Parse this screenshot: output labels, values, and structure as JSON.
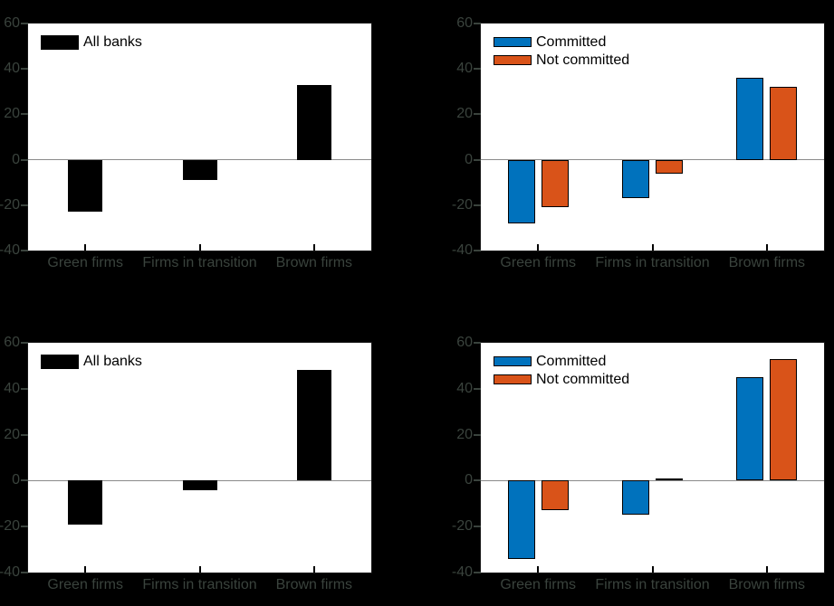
{
  "figure": {
    "background": "#000000",
    "rows": 2,
    "cols": 2
  },
  "colors": {
    "panel_background": "#ffffff",
    "axis_spine": "#161616",
    "zero_line": "#8a8a8a",
    "tick_label": "#3a433d",
    "legend_text": "#000000",
    "bar_edge": "#000000",
    "bar_black": "#000000",
    "bar_blue": "#0072bd",
    "bar_orange": "#d95319"
  },
  "chart_data": [
    {
      "id": "top-left",
      "type": "bar",
      "title": "",
      "xlabel": "",
      "ylabel": "",
      "ylim": [
        -40,
        60
      ],
      "yticks": [
        60,
        40,
        20,
        0,
        -20,
        -40
      ],
      "grid": false,
      "zero_line": true,
      "legend_position": "top-left",
      "categories": [
        "Green firms",
        "Firms in transition",
        "Brown firms"
      ],
      "series": [
        {
          "name": "All banks",
          "color": "#000000",
          "values": [
            -23,
            -9,
            33
          ]
        }
      ]
    },
    {
      "id": "top-right",
      "type": "bar",
      "title": "",
      "xlabel": "",
      "ylabel": "",
      "ylim": [
        -40,
        60
      ],
      "yticks": [
        60,
        40,
        20,
        0,
        -20,
        -40
      ],
      "grid": false,
      "zero_line": true,
      "legend_position": "top-left",
      "categories": [
        "Green firms",
        "Firms in transition",
        "Brown firms"
      ],
      "series": [
        {
          "name": "Committed",
          "color": "#0072bd",
          "values": [
            -28,
            -17,
            36
          ]
        },
        {
          "name": "Not committed",
          "color": "#d95319",
          "values": [
            -21,
            -6,
            32
          ]
        }
      ]
    },
    {
      "id": "bottom-left",
      "type": "bar",
      "title": "",
      "xlabel": "",
      "ylabel": "",
      "ylim": [
        -40,
        60
      ],
      "yticks": [
        60,
        40,
        20,
        0,
        -20,
        -40
      ],
      "grid": false,
      "zero_line": true,
      "legend_position": "top-left",
      "categories": [
        "Green firms",
        "Firms in transition",
        "Brown firms"
      ],
      "series": [
        {
          "name": "All banks",
          "color": "#000000",
          "values": [
            -19,
            -4,
            48
          ]
        }
      ]
    },
    {
      "id": "bottom-right",
      "type": "bar",
      "title": "",
      "xlabel": "",
      "ylabel": "",
      "ylim": [
        -40,
        60
      ],
      "yticks": [
        60,
        40,
        20,
        0,
        -20,
        -40
      ],
      "grid": false,
      "zero_line": true,
      "legend_position": "top-left",
      "categories": [
        "Green firms",
        "Firms in transition",
        "Brown firms"
      ],
      "series": [
        {
          "name": "Committed",
          "color": "#0072bd",
          "values": [
            -34,
            -15,
            45
          ]
        },
        {
          "name": "Not committed",
          "color": "#d95319",
          "values": [
            -13,
            1,
            53
          ]
        }
      ]
    }
  ]
}
